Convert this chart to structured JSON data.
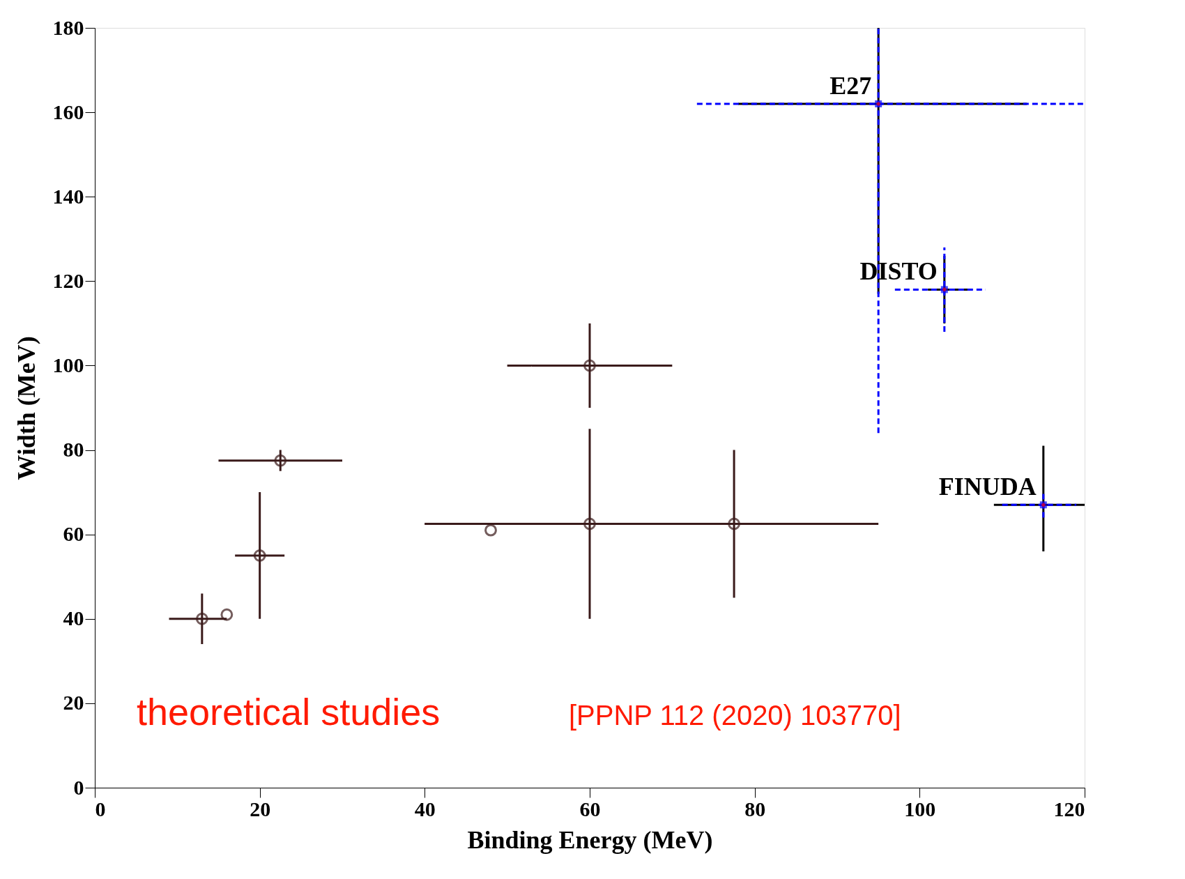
{
  "chart_data": {
    "type": "scatter",
    "xlabel": "Binding Energy (MeV)",
    "ylabel": "Width (MeV)",
    "xlim": [
      0,
      120
    ],
    "ylim": [
      0,
      180
    ],
    "xticks": [
      0,
      20,
      40,
      60,
      80,
      100,
      120
    ],
    "yticks": [
      0,
      20,
      40,
      60,
      80,
      100,
      120,
      140,
      160,
      180
    ],
    "grid": false,
    "series": [
      {
        "color": "#3a1a1a",
        "marker": "circle",
        "x": [
          13,
          16,
          20,
          22.5,
          48,
          60,
          60,
          77.5
        ],
        "values": [
          40,
          41,
          55,
          77.5,
          61,
          100,
          62.5,
          62.5
        ],
        "errors": [
          [
            34,
            46
          ],
          null,
          [
            40,
            70
          ],
          [
            75,
            80
          ],
          null,
          [
            90,
            110
          ],
          [
            40,
            85
          ],
          [
            45,
            80
          ]
        ],
        "xerrors": [
          [
            9,
            16
          ],
          null,
          [
            17,
            23
          ],
          [
            15,
            30
          ],
          null,
          [
            50,
            70
          ],
          [
            40,
            80
          ],
          [
            40,
            95
          ]
        ]
      },
      {
        "color": "#0000ff",
        "marker": "square",
        "line_style": "dashed",
        "x": [
          95,
          103,
          115
        ],
        "values": [
          162,
          118,
          67
        ],
        "errors": [
          [
            84,
            180
          ],
          [
            108,
            128
          ],
          [
            64,
            70
          ]
        ],
        "xerrors": [
          [
            73,
            120
          ],
          [
            97,
            108
          ],
          [
            110,
            119
          ]
        ]
      },
      {
        "color": "#ff0000",
        "marker": "diamond",
        "x": [
          95,
          103,
          115
        ],
        "values": [
          162,
          118,
          67
        ],
        "errors": [
          [
            117,
            180
          ],
          [
            110,
            126
          ],
          [
            56,
            81
          ]
        ],
        "xerrors": [
          [
            78,
            113
          ],
          [
            101,
            106
          ],
          [
            109,
            120
          ]
        ]
      }
    ],
    "annotations": [
      {
        "text": "E27",
        "x": 95,
        "y": 162
      },
      {
        "text": "DISTO",
        "x": 103,
        "y": 118
      },
      {
        "text": "FINUDA",
        "x": 115,
        "y": 67
      },
      "theoretical studies",
      "[PPNP 112 (2020) 103770]"
    ]
  }
}
